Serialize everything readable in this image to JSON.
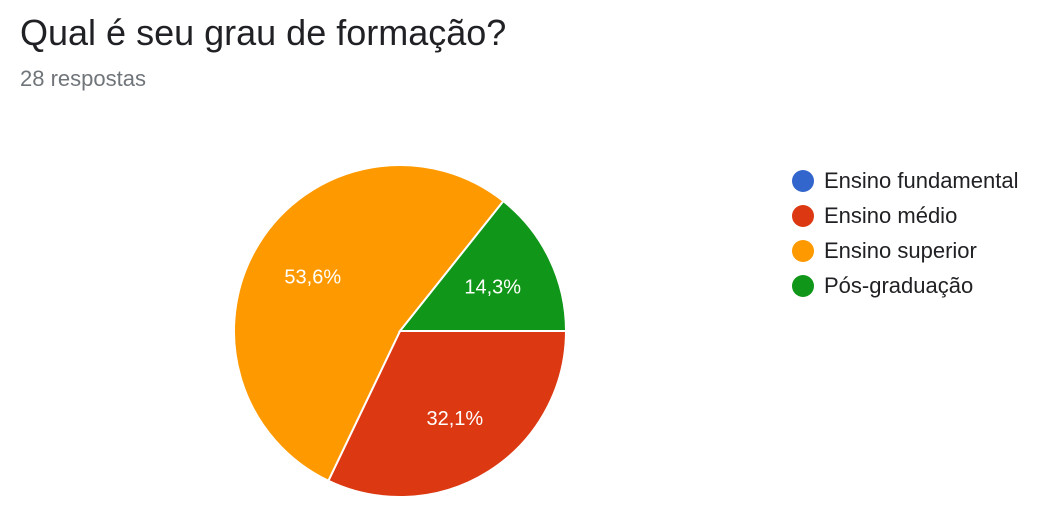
{
  "header": {
    "title": "Qual é seu grau de formação?",
    "subtitle": "28 respostas"
  },
  "chart_data": {
    "type": "pie",
    "categories": [
      "Ensino fundamental",
      "Ensino médio",
      "Ensino superior",
      "Pós-graduação"
    ],
    "values": [
      0,
      32.1,
      53.6,
      14.3
    ],
    "labels": [
      "",
      "32,1%",
      "53,6%",
      "14,3%"
    ],
    "colors": [
      "#3366cc",
      "#dc3912",
      "#ff9900",
      "#109618"
    ],
    "legend_position": "right"
  }
}
